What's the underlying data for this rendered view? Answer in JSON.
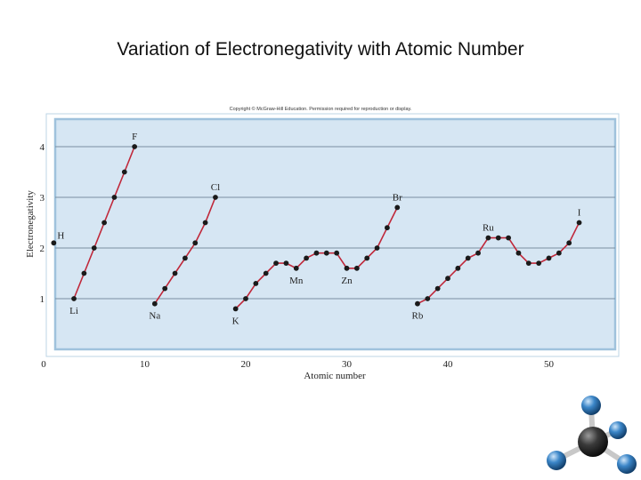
{
  "slide": {
    "title": "Variation of Electronegativity with Atomic Number"
  },
  "copyright": "Copyright © McGraw-Hill Education. Permission required for reproduction or display.",
  "colors": {
    "plot_background": "#d6e6f3",
    "plot_border": "#9fc2dc",
    "line": "#c0283a",
    "marker": "#1a1a1a",
    "grid": "#7a8fa0",
    "molecule_center": "#333333",
    "molecule_outer": "#3b86c8"
  },
  "chart_data": {
    "type": "scatter",
    "xlabel": "Atomic number",
    "ylabel": "Electronegativity",
    "xlim": [
      0,
      56
    ],
    "ylim": [
      0,
      4.5
    ],
    "xticks": [
      0,
      10,
      20,
      30,
      40,
      50
    ],
    "yticks": [
      1,
      2,
      3,
      4
    ],
    "grid": "horizontal",
    "series": [
      {
        "x": [
          1
        ],
        "y": [
          2.1
        ],
        "connected": false
      },
      {
        "x": [
          3,
          4,
          5,
          6,
          7,
          8,
          9
        ],
        "y": [
          1.0,
          1.5,
          2.0,
          2.5,
          3.0,
          3.5,
          4.0
        ]
      },
      {
        "x": [
          11,
          12,
          13,
          14,
          15,
          16,
          17
        ],
        "y": [
          0.9,
          1.2,
          1.5,
          1.8,
          2.1,
          2.5,
          3.0
        ]
      },
      {
        "x": [
          19,
          20,
          21,
          22,
          23,
          24,
          25,
          26,
          27,
          28,
          29,
          30,
          31,
          32,
          33,
          34,
          35
        ],
        "y": [
          0.8,
          1.0,
          1.3,
          1.5,
          1.7,
          1.7,
          1.6,
          1.8,
          1.9,
          1.9,
          1.9,
          1.6,
          1.6,
          1.8,
          2.0,
          2.4,
          2.8
        ]
      },
      {
        "x": [
          37,
          38,
          39,
          40,
          41,
          42,
          43,
          44,
          45,
          46,
          47,
          48,
          49,
          50,
          51,
          52,
          53
        ],
        "y": [
          0.9,
          1.0,
          1.2,
          1.4,
          1.6,
          1.8,
          1.9,
          2.2,
          2.2,
          2.2,
          1.9,
          1.7,
          1.7,
          1.8,
          1.9,
          2.1,
          2.5
        ]
      }
    ],
    "annotations": [
      {
        "text": "H",
        "x": 1,
        "y": 2.1,
        "pos": "upper-right"
      },
      {
        "text": "Li",
        "x": 3,
        "y": 1.0,
        "pos": "below"
      },
      {
        "text": "F",
        "x": 9,
        "y": 4.0,
        "pos": "above"
      },
      {
        "text": "Na",
        "x": 11,
        "y": 0.9,
        "pos": "below"
      },
      {
        "text": "Cl",
        "x": 17,
        "y": 3.0,
        "pos": "above"
      },
      {
        "text": "K",
        "x": 19,
        "y": 0.8,
        "pos": "below"
      },
      {
        "text": "Mn",
        "x": 25,
        "y": 1.6,
        "pos": "below"
      },
      {
        "text": "Zn",
        "x": 30,
        "y": 1.6,
        "pos": "below"
      },
      {
        "text": "Br",
        "x": 35,
        "y": 2.8,
        "pos": "above"
      },
      {
        "text": "Rb",
        "x": 37,
        "y": 0.9,
        "pos": "below"
      },
      {
        "text": "Ru",
        "x": 44,
        "y": 2.2,
        "pos": "above"
      },
      {
        "text": "I",
        "x": 53,
        "y": 2.5,
        "pos": "above"
      }
    ]
  }
}
